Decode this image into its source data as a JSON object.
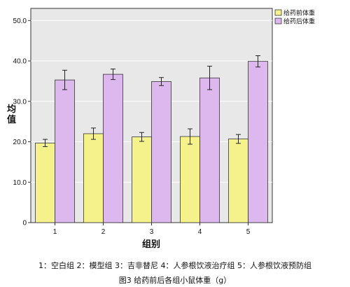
{
  "chart_data": {
    "type": "bar",
    "categories": [
      "1",
      "2",
      "3",
      "4",
      "5"
    ],
    "series": [
      {
        "name": "给药前体重",
        "color": "#f5f28c",
        "values": [
          19.7,
          22.0,
          21.2,
          21.3,
          20.7
        ],
        "errors": [
          0.9,
          1.4,
          1.1,
          1.9,
          1.1
        ]
      },
      {
        "name": "给药后体重",
        "color": "#dcb8ee",
        "values": [
          35.3,
          36.7,
          34.9,
          35.8,
          39.9
        ],
        "errors": [
          2.4,
          1.3,
          1.0,
          2.9,
          1.4
        ]
      }
    ],
    "xlabel": "组别",
    "ylabel": "均\n值",
    "ylim": [
      0,
      53
    ],
    "yticks": [
      "0",
      "10.0",
      "20.0",
      "30.0",
      "40.0",
      "50.0"
    ],
    "ytick_values": [
      0,
      10,
      20,
      30,
      40,
      50
    ],
    "grid": true,
    "legend_position": "top-right",
    "plot_background": "#e8e8e8"
  },
  "group_key": "1：空白组   2：模型组   3：吉非替尼   4：人参根饮液治疗组   5：人参根饮液预防组",
  "caption": "图3   给药前后各组小鼠体重（g）"
}
